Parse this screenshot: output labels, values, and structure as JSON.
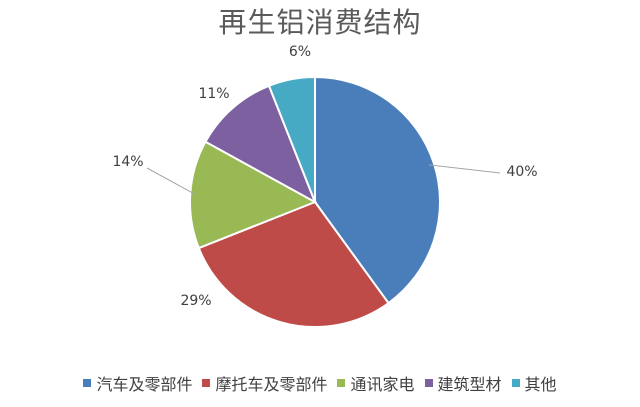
{
  "chart_data": {
    "type": "pie",
    "title": "再生铝消费结构",
    "categories": [
      "汽车及零部件",
      "摩托车及零部件",
      "通讯家电",
      "建筑型材",
      "其他"
    ],
    "values": [
      40,
      29,
      14,
      11,
      6
    ],
    "data_labels": [
      "40%",
      "29%",
      "14%",
      "11%",
      "6%"
    ],
    "colors": [
      "#4a7ebb",
      "#be4b48",
      "#98b954",
      "#7d60a0",
      "#46aac5"
    ],
    "start_angle": "12 o'clock",
    "direction": "clockwise",
    "legend_position": "bottom"
  }
}
